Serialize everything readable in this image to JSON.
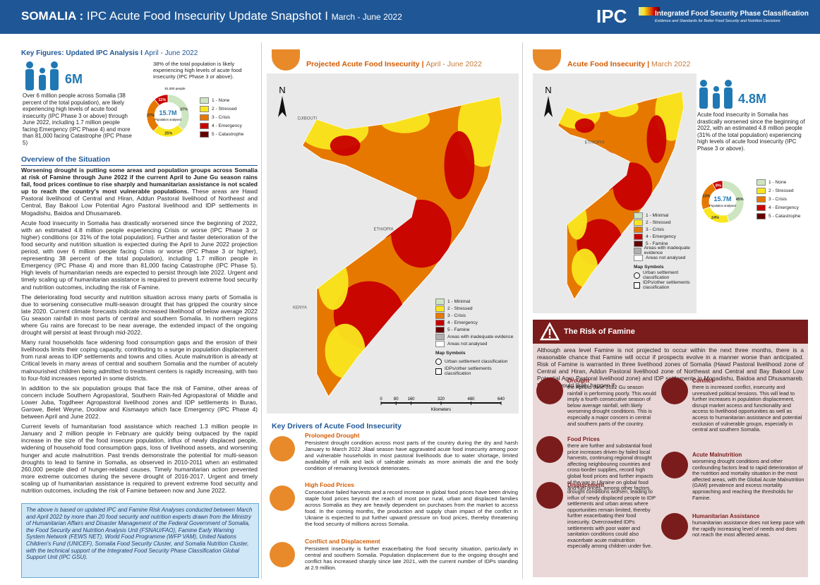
{
  "header": {
    "title_bold": "SOMALIA :",
    "title": "IPC Acute Food Insecurity Update Snapshot I",
    "period": "March - June 2022",
    "logo": "IPC",
    "logo_title": "Integrated Food Security Phase Classification",
    "logo_subtitle": "Evidence and Standards for Better Food Security and Nutrition Decisions"
  },
  "key_figures": {
    "heading": "Key Figures: Updated IPC Analysis I",
    "period": "April - June 2022",
    "figure": "6M",
    "text": "Over 6 million people across Somalia (38 percent of the total population), are likely experiencing high levels of acute food insecurity (IPC Phase 3 or above) through June 2022, including 1.7 million people facing Emergency (IPC Phase 4) and more than 81,000 facing Catastrophe (IPC Phase 5)",
    "note": "38% of the total population is likely experiencing high levels of acute food insecurity (IPC Phase 3 or above).",
    "chart": {
      "type": "pie",
      "top_label": "81,000 people",
      "center_value": "15.7M",
      "center_label": "Population analysed",
      "categories": [
        "1 - None",
        "2 - Stressed",
        "3 - Crisis",
        "4 - Emergency",
        "5 - Catastrophe"
      ],
      "colors": [
        "#cde5c0",
        "#fae61e",
        "#e67800",
        "#c80000",
        "#640000"
      ],
      "values": [
        37,
        25,
        27,
        11,
        null
      ],
      "value_labels": [
        "37%",
        "25%",
        "27%",
        "11%",
        null
      ]
    }
  },
  "overview": {
    "heading": "Overview of the Situation",
    "lead": "Worsening drought is putting some areas and population groups across Somalia at risk of Famine through June 2022 if the current April to June Gu season rains fail, food prices continue to rise sharply and humanitarian assistance is not scaled up to reach the country's most vulnerable populations.",
    "paragraphs": [
      " These areas are Hawd Pastoral livelihood of Central and Hiran, Addun Pastoral livelihood of Northeast and Central, Bay Bakool Low Potential Agro Pastoral livelihood and IDP settlements in Mogadishu, Baidoa and Dhusamareb.",
      "Acute food insecurity in Somalia has drastically worsened since the beginning of 2022, with an estimated 4.8 million people experiencing Crisis or worse (IPC Phase 3 or higher) conditions (or 31% of the total population). Further and faster deterioration of the food security and nutrition situation is expected during the April to June 2022 projection period, with over 6 million people facing Crisis or worse (IPC Phase 3 or higher), representing 38 percent of the total population), including 1.7 million people in Emergency (IPC Phase 4) and more than 81,000 facing Catastrophe (IPC Phase 5). High levels of humanitarian needs are expected to persist through late 2022. Urgent and timely scaling up of humanitarian assistance is required to prevent extreme food security and nutrition outcomes, including the risk of Famine.",
      "The deteriorating food security and nutrition situation across many parts of Somalia is due to worsening consecutive multi-season drought that has gripped the country since late 2020. Current climate forecasts indicate increased likelihood of below average 2022 Gu season rainfall in most parts of central and southern Somalia. In northern regions where Gu rains are forecast to be near average, the extended impact of the ongoing drought will persist at least through mid-2022.",
      "Many rural households face widening food consumption gaps and the erosion of their livelihoods limits their coping capacity, contributing to a surge in population displacement from rural areas to IDP settlements and towns and cities. Acute malnutrition is already at Critical levels in many areas of central and southern Somalia and the number of acutely malnourished children being admitted to treatment centers is rapidly increasing, with two to four-fold increases reported in some districts.",
      "In addition to the six population groups that face the risk of Famine, other areas of concern include Southern Agropastoral, Southern Rain-fed Agropastoral of Middle and Lower Juba, Togdheer Agropastoral livelihood zones and IDP settlements in Burao, Garowe, Belet Weyne, Doolow and Kismaayo which face Emergency (IPC Phase 4) between April and June 2022.",
      "Current levels of humanitarian food assistance which reached 1.3 million people in January and 2 million people in February are quickly being outpaced by the rapid increase in the size of the food insecure population, influx of newly displaced people, widening of household food consumption gaps, loss of livelihood assets, and worsening hunger and acute malnutrition. Past trends demonstrate the potential for multi-season droughts to lead to famine in Somalia, as observed in 2010-2011 when an estimated 260,000 people died of hunger-related causes. Timely humanitarian action prevented more extreme outcomes during the severe drought of 2016-2017. Urgent and timely scaling up of humanitarian assistance is required to prevent extreme food security and nutrition outcomes, including the risk of Famine between now and June 2022."
    ],
    "note": "The above is based on updated IPC and Famine Risk Analyses conducted between March and April 2022 by more than 20 food security and nutrition experts drawn from the Ministry of Humanitarian Affairs and Disaster Management of the Federal Government of Somalia, the Food Security and Nutrition Analysis Unit (FSNAU/FAO), Famine Early Warning System Network (FEWS NET), World Food Programme (WFP VAM), United Nations Children's Fund (UNICEF), Somalia Food Security Cluster, and Somalia Nutrition Cluster, with the technical support of the Integrated Food Security Phase Classification Global Support Unit (IPC GSU)."
  },
  "projected": {
    "heading": "Projected Acute Food Insecurity",
    "period": "April - June 2022",
    "map": {
      "north": "N",
      "labels": [
        "DJIBOUTI",
        "ETHIOPIA",
        "KENYA"
      ],
      "legend": [
        "1 - Minimal",
        "2 - Stressed",
        "3 - Crisis",
        "4 - Emergency",
        "5 - Famine",
        "Areas with inadequate evidence",
        "Areas not analysed"
      ],
      "colors": [
        "#cde5c0",
        "#fae61e",
        "#e67800",
        "#c80000",
        "#640000",
        "#b0b0b0",
        "#ffffff"
      ],
      "symbols_title": "Map Symbols",
      "symbols": [
        "Urban settlement classification",
        "IDPs/other settlements classification"
      ],
      "scale": [
        0,
        80,
        160,
        320,
        480,
        640
      ],
      "scale_unit": "Kilometers"
    }
  },
  "drivers": {
    "heading": "Key Drivers of Acute Food Insecurity",
    "items": [
      {
        "title": "Prolonged Drought",
        "text": "Persistent drought condition across most parts of the country during the dry and harsh January to March 2022 Jilaal season have aggravated acute food insecurity among poor and vulnerable households in most pastoral livelihoods due to water shortage, limited availability of milk and lack of saleable animals as more animals die and the body condition of remaining livestock deteriorates."
      },
      {
        "title": "High Food Prices",
        "text": "Consecutive failed harvests and a record increase in global food prices have been driving staple food prices beyond the reach of most poor rural, urban and displaced families across Somalia as they are heavily dependent on purchases from the market to access food. In the coming months, the production and supply chain impact of the conflict in Ukraine is expected to put further upward pressure on food prices, thereby threatening the food security of millions across Somalia."
      },
      {
        "title": "Conflict and Displacement",
        "text": "Persistent insecurity is further exacerbating the food security situation, particularly in central and southern Somalia. Population displacement due to the ongoing drought and conflict has increased sharply since late 2021, with the current number of IDPs standing at 2.9 million."
      }
    ]
  },
  "current": {
    "heading": "Acute Food Insecurity",
    "period": "March 2022",
    "figure": "4.8M",
    "text": "Acute food insecurity in Somalia has drastically worsened since the beginning of 2022, with an estimated 4.8 million people (31% of the total population) experiencing high levels of acute food insecurity (IPC Phase 3 or above).",
    "chart": {
      "type": "pie",
      "center_value": "15.7M",
      "center_label": "Population analysed",
      "categories": [
        "1 - None",
        "2 - Stressed",
        "3 - Crisis",
        "4 - Emergency",
        "5 - Catastrophe"
      ],
      "colors": [
        "#cde5c0",
        "#fae61e",
        "#e67800",
        "#c80000",
        "#640000"
      ],
      "values": [
        45,
        24,
        23,
        8,
        null
      ],
      "value_labels": [
        "45%",
        "24%",
        "23%",
        "8%",
        null
      ]
    },
    "map": {
      "north": "N",
      "labels": [
        "ETHIOPIA"
      ],
      "legend": [
        "1 - Minimal",
        "2 - Stressed",
        "3 - Crisis",
        "4 - Emergency",
        "5 - Famine",
        "Areas with inadequate evidence",
        "Areas not analysed"
      ],
      "colors": [
        "#cde5c0",
        "#fae61e",
        "#e67800",
        "#c80000",
        "#640000",
        "#b0b0b0",
        "#ffffff"
      ],
      "symbols_title": "Map Symbols",
      "symbols": [
        "Urban settlement classification",
        "IDPs/other settlements classification"
      ]
    }
  },
  "famine": {
    "heading": "The Risk of Famine",
    "intro": "Although area level Famine is not projected to occur within the next three months, there is a reasonable chance that Famine will occur if prospects evolve in a manner worse than anticipated. Risk of Famine is warranted in three livelihood zones of Somalia (Hawd Pastoral livelihood zone of Central and Hiran, Addun Pastoral livelihood zone of Northeast and Central and Bay Bakool Low Potential Agro Pastoral livelihood zone) and IDP settlements in Mogadishu, Baidoa and Dhusamareb. Famine would likely happen if:",
    "items": [
      {
        "title": "Drought",
        "text": "the April to June 2022 Gu season rainfall is performing poorly. This would imply a fourth consecutive season of below average rainfall, with likely worsening drought conditions. This is especially a major concern in central and southern parts of the country."
      },
      {
        "title": "Conflict",
        "text": "there is increased conflict, insecurity and unresolved political tensions. This will lead to further increases in population displacement, disrupt market access and functionality and access to livelihood opportunities as well as access to humanitarian assistance and potential exclusion of vulnerable groups, especially in central and southern Somalia."
      },
      {
        "title": "Food Prices",
        "text": "there are further and substantial food price increases driven by failed local harvests, continuing regional drought affecting neighbouring countries and cross-border supplies, record high global food prices and further impacts of the war in Ukraine on global food and fuel prices, among other factors."
      },
      {
        "title": "Acute Malnutrition",
        "text": "worsening drought conditions and other confounding factors lead to rapid deterioration of the nutrition and mortality situation in the most affected areas, with the Global Acute Malnutrition (GAM) prevalence and excess mortality approaching and reaching the thresholds for Famine."
      },
      {
        "title": "Displacement",
        "text": "drought conditions worsen, leading to influx of newly displaced people to IDP settlements and urban areas where opportunities remain limited, thereby further exacerbating their food insecurity. Overcrowded IDPs settlements with poor water and sanitation conditions could also exacerbate acute malnutrition especially among children under five."
      },
      {
        "title": "Humanitarian Assistance",
        "text": "humanitarian assistance does not keep pace with the rapidly increasing level of needs and does not reach the most affected areas."
      }
    ]
  }
}
